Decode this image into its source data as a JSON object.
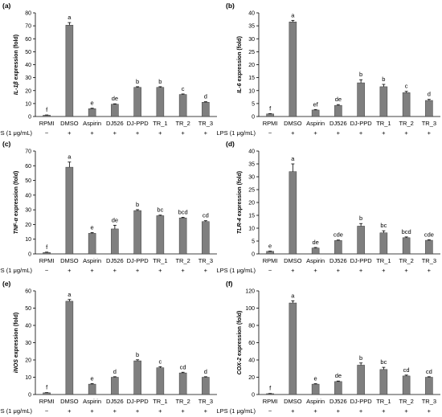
{
  "figure": {
    "condition_label": "LPS (1 μg/mL)",
    "colors": {
      "bar": "#7f7f7f",
      "axis": "#000000"
    }
  },
  "chart_data": [
    {
      "panel": "(a)",
      "type": "bar",
      "ylabel": "IL-1β expression (fold)",
      "ylabel_gene": "IL-1β",
      "ylabel_rest": " expression (fold)",
      "ylim": [
        0,
        80
      ],
      "yticks": [
        0,
        10,
        20,
        30,
        40,
        50,
        60,
        70,
        80
      ],
      "categories": [
        "RPMI",
        "DMSO",
        "Aspirin",
        "DJ526",
        "DJ-PPD",
        "TR_1",
        "TR_2",
        "TR_3"
      ],
      "lps": [
        "−",
        "+",
        "+",
        "+",
        "+",
        "+",
        "+",
        "+"
      ],
      "values": [
        1,
        70.5,
        6,
        9.5,
        22.5,
        22.5,
        17,
        11
      ],
      "errors": [
        0.2,
        2.0,
        0.4,
        0.3,
        0.5,
        0.5,
        0.4,
        0.4
      ],
      "letters": [
        "f",
        "a",
        "e",
        "de",
        "b",
        "b",
        "c",
        "d"
      ]
    },
    {
      "panel": "(b)",
      "type": "bar",
      "ylabel": "IL-6 expression (fold)",
      "ylabel_gene": "IL-6",
      "ylabel_rest": " expression (fold)",
      "ylim": [
        0,
        40
      ],
      "yticks": [
        0,
        5,
        10,
        15,
        20,
        25,
        30,
        35,
        40
      ],
      "categories": [
        "RPMI",
        "DMSO",
        "Aspirin",
        "DJ526",
        "DJ-PPD",
        "TR_1",
        "TR_2",
        "TR_3"
      ],
      "lps": [
        "−",
        "+",
        "+",
        "+",
        "+",
        "+",
        "+",
        "+"
      ],
      "values": [
        1,
        36.5,
        2.5,
        4.3,
        13,
        11.5,
        9.2,
        6.2
      ],
      "errors": [
        0.1,
        0.6,
        0.2,
        0.3,
        1.2,
        0.9,
        0.5,
        0.4
      ],
      "letters": [
        "f",
        "a",
        "ef",
        "de",
        "b",
        "b",
        "c",
        "d"
      ]
    },
    {
      "panel": "(c)",
      "type": "bar",
      "ylabel": "TNF-α expression (fold)",
      "ylabel_gene": "TNF-α",
      "ylabel_rest": " expression (fold)",
      "ylim": [
        0,
        70
      ],
      "yticks": [
        0,
        10,
        20,
        30,
        40,
        50,
        60,
        70
      ],
      "categories": [
        "RPMI",
        "DMSO",
        "Aspirin",
        "DJ526",
        "DJ-PPD",
        "TR_1",
        "TR_2",
        "TR_3"
      ],
      "lps": [
        "−",
        "+",
        "+",
        "+",
        "+",
        "+",
        "+",
        "+"
      ],
      "values": [
        1,
        59,
        14,
        17,
        29.5,
        26,
        24.5,
        22
      ],
      "errors": [
        0.2,
        3.5,
        0.5,
        2.5,
        0.6,
        0.4,
        0.4,
        0.6
      ],
      "letters": [
        "f",
        "a",
        "e",
        "de",
        "b",
        "bc",
        "bcd",
        "cd"
      ]
    },
    {
      "panel": "(d)",
      "type": "bar",
      "ylabel": "TLR-4 expression (fold)",
      "ylabel_gene": "TLR-4",
      "ylabel_rest": " expression (fold)",
      "ylim": [
        0,
        40
      ],
      "yticks": [
        0,
        5,
        10,
        15,
        20,
        25,
        30,
        35,
        40
      ],
      "categories": [
        "RPMI",
        "DMSO",
        "Aspirin",
        "DJ526",
        "DJ-PPD",
        "TR_1",
        "TR_2",
        "TR_3"
      ],
      "lps": [
        "−",
        "+",
        "+",
        "+",
        "+",
        "+",
        "+",
        "+"
      ],
      "values": [
        1,
        32,
        2.3,
        5.2,
        10.8,
        8.2,
        6.3,
        5.3
      ],
      "errors": [
        0.1,
        3.0,
        0.2,
        0.2,
        1.0,
        0.8,
        0.3,
        0.2
      ],
      "letters": [
        "e",
        "a",
        "de",
        "cde",
        "b",
        "bc",
        "bcd",
        "cde"
      ]
    },
    {
      "panel": "(e)",
      "type": "bar",
      "ylabel": "iNOS expression (fold)",
      "ylabel_gene": "iNOS",
      "ylabel_rest": " expression (fold)",
      "ylim": [
        0,
        60
      ],
      "yticks": [
        0,
        10,
        20,
        30,
        40,
        50,
        60
      ],
      "categories": [
        "RPMI",
        "DMSO",
        "Aspirin",
        "DJ526",
        "DJ-PPD",
        "TR_1",
        "TR_2",
        "TR_3"
      ],
      "lps": [
        "−",
        "+",
        "+",
        "+",
        "+",
        "+",
        "+",
        "+"
      ],
      "values": [
        1,
        54,
        6,
        10,
        19.5,
        15.5,
        12.5,
        10
      ],
      "errors": [
        0.1,
        1.0,
        0.3,
        0.3,
        0.6,
        0.6,
        0.4,
        0.3
      ],
      "letters": [
        "f",
        "a",
        "e",
        "d",
        "b",
        "c",
        "cd",
        "d"
      ]
    },
    {
      "panel": "(f)",
      "type": "bar",
      "ylabel": "COX-2 expression (fold)",
      "ylabel_gene": "COX-2",
      "ylabel_rest": " expression (fold)",
      "ylim": [
        0,
        120
      ],
      "yticks": [
        0,
        20,
        40,
        60,
        80,
        100,
        120
      ],
      "categories": [
        "RPMI",
        "DMSO",
        "Aspirin",
        "DJ526",
        "DJ-PPD",
        "TR_1",
        "TR_2",
        "TR_3"
      ],
      "lps": [
        "−",
        "+",
        "+",
        "+",
        "+",
        "+",
        "+",
        "+"
      ],
      "values": [
        1,
        106,
        12,
        15,
        34,
        29,
        21.5,
        20
      ],
      "errors": [
        0.2,
        2.5,
        0.5,
        0.6,
        2.5,
        2.5,
        1.0,
        0.6
      ],
      "letters": [
        "f",
        "a",
        "e",
        "de",
        "b",
        "bc",
        "cd",
        "cd"
      ]
    }
  ]
}
